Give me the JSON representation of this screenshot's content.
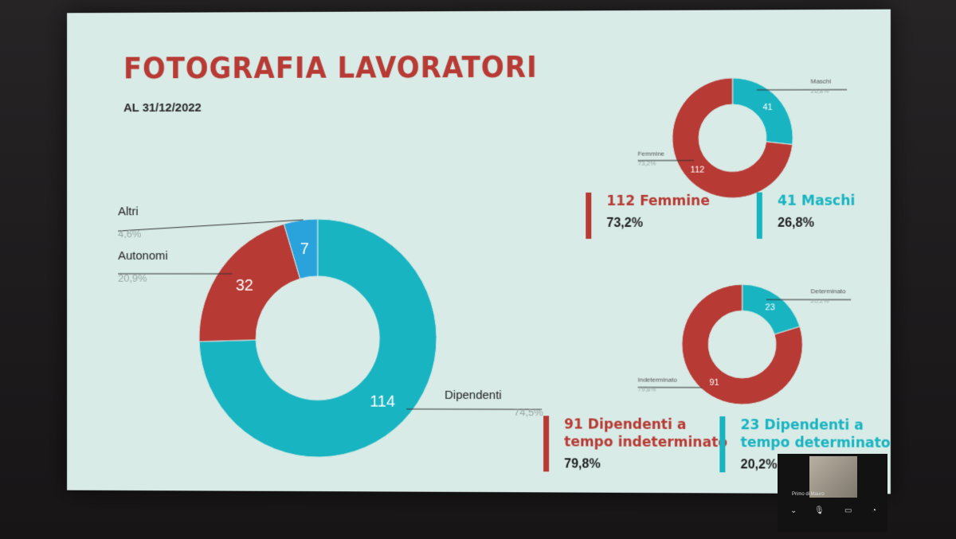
{
  "title": "FOTOGRAFIA LAVORATORI",
  "subtitle": "AL 31/12/2022",
  "colors": {
    "red": "#b83a35",
    "cyan": "#19b4c2",
    "blue": "#2aa3dd",
    "background": "#d8ebe6"
  },
  "chart_data": [
    {
      "type": "pie",
      "variant": "donut",
      "categories": [
        "Dipendenti",
        "Autonomi",
        "Altri"
      ],
      "values": [
        114,
        32,
        7
      ],
      "percent_labels": [
        "74,5%",
        "20,9%",
        "4,6%"
      ],
      "colors": [
        "#19b4c2",
        "#b83a35",
        "#2aa3dd"
      ]
    },
    {
      "type": "pie",
      "variant": "donut",
      "categories": [
        "Maschi",
        "Femmine"
      ],
      "values": [
        41,
        112
      ],
      "percent_labels": [
        "26,8%",
        "73,2%"
      ],
      "colors": [
        "#19b4c2",
        "#b83a35"
      ]
    },
    {
      "type": "pie",
      "variant": "donut",
      "categories": [
        "Determinato",
        "Indeterminato"
      ],
      "values": [
        23,
        91
      ],
      "percent_labels": [
        "20,2%",
        "79,8%"
      ],
      "colors": [
        "#19b4c2",
        "#b83a35"
      ]
    }
  ],
  "stats": {
    "femmine": {
      "label": "112 Femmine",
      "pct": "73,2%"
    },
    "maschi": {
      "label": "41 Maschi",
      "pct": "26,8%"
    },
    "indeterminato": {
      "line1": "91 Dipendenti a",
      "line2": "tempo indeterminato",
      "pct": "79,8%"
    },
    "determinato": {
      "line1": "23 Dipendenti a",
      "line2": "tempo determinato",
      "pct": "20,2%"
    }
  },
  "camera": {
    "name": "Primo di Mauro"
  }
}
